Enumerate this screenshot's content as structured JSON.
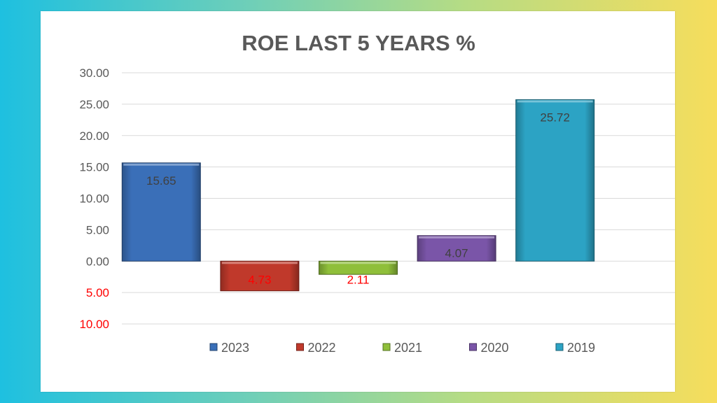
{
  "chart_data": {
    "type": "bar",
    "title": "ROE LAST 5 YEARS  %",
    "categories": [
      "2023",
      "2022",
      "2021",
      "2020",
      "2019"
    ],
    "values": [
      15.65,
      -4.73,
      -2.11,
      4.07,
      25.72
    ],
    "data_labels": [
      "15.65",
      "4.73",
      "2.11",
      "4.07",
      "25.72"
    ],
    "ylim": [
      -10,
      30
    ],
    "y_ticks": [
      30,
      25,
      20,
      15,
      10,
      5,
      0,
      -5,
      -10
    ],
    "y_tick_labels": [
      "30.00",
      "25.00",
      "20.00",
      "15.00",
      "10.00",
      "5.00",
      "0.00",
      "5.00",
      "10.00"
    ],
    "grid": true,
    "legend_position": "bottom",
    "legend": [
      "2023",
      "2022",
      "2021",
      "2020",
      "2019"
    ],
    "colors": [
      "#3a6fb8",
      "#c0392b",
      "#8fbf3a",
      "#7a55a8",
      "#2ca3c4"
    ],
    "label_colors": {
      "positive": "#404040",
      "negative": "#ff0000"
    },
    "tick_colors": {
      "positive": "#595959",
      "negative": "#ff0000"
    }
  }
}
